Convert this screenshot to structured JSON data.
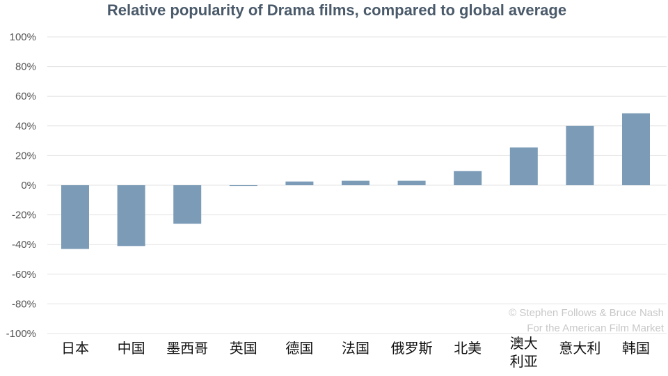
{
  "chart_data": {
    "type": "bar",
    "title": "Relative popularity of Drama films, compared to global average",
    "xlabel": "",
    "ylabel": "",
    "categories": [
      "日本",
      "中国",
      "墨西哥",
      "英国",
      "德国",
      "法国",
      "俄罗斯",
      "北美",
      "澳大利亚",
      "意大利",
      "韩国"
    ],
    "category_lines": [
      [
        "日本"
      ],
      [
        "中国"
      ],
      [
        "墨西哥"
      ],
      [
        "英国"
      ],
      [
        "德国"
      ],
      [
        "法国"
      ],
      [
        "俄罗斯"
      ],
      [
        "北美"
      ],
      [
        "澳大",
        "利亚"
      ],
      [
        "意大利"
      ],
      [
        "韩国"
      ]
    ],
    "values": [
      -43,
      -41,
      -26,
      -0.5,
      2.5,
      3,
      3,
      9.5,
      25.5,
      40,
      48.5
    ],
    "ylim": [
      -100,
      100
    ],
    "yticks": [
      100,
      80,
      60,
      40,
      20,
      0,
      -20,
      -40,
      -60,
      -80,
      -100
    ],
    "ytick_labels": [
      "100%",
      "80%",
      "60%",
      "40%",
      "20%",
      "0%",
      "-20%",
      "-40%",
      "-60%",
      "-80%",
      "-100%"
    ],
    "grid": true,
    "legend": "none",
    "bar_color": "#7b9bb7",
    "credit_lines": [
      "© Stephen Follows & Bruce Nash",
      "For the American Film Market"
    ]
  }
}
